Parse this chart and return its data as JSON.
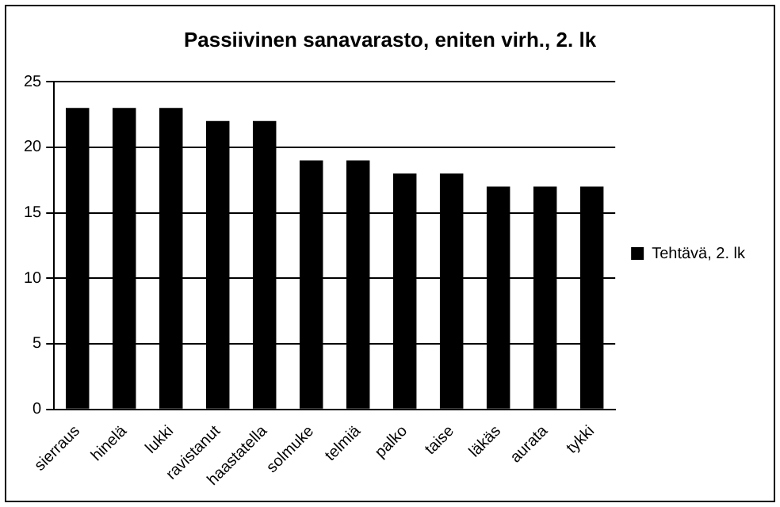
{
  "chart_data": {
    "type": "bar",
    "title": "Passiivinen sanavarasto, eniten virh., 2. lk",
    "categories": [
      "sierraus",
      "hinelä",
      "lukki",
      "ravistanut",
      "haastatella",
      "solmuke",
      "telmiä",
      "palko",
      "taise",
      "läkäs",
      "aurata",
      "tykki"
    ],
    "series": [
      {
        "name": "Tehtävä, 2. lk",
        "color": "#000000",
        "values": [
          23,
          23,
          23,
          22,
          22,
          19,
          19,
          18,
          18,
          17,
          17,
          17
        ]
      }
    ],
    "ylim": [
      0,
      25
    ],
    "yticks": [
      0,
      5,
      10,
      15,
      20,
      25
    ],
    "grid": "y",
    "legend": "right"
  }
}
